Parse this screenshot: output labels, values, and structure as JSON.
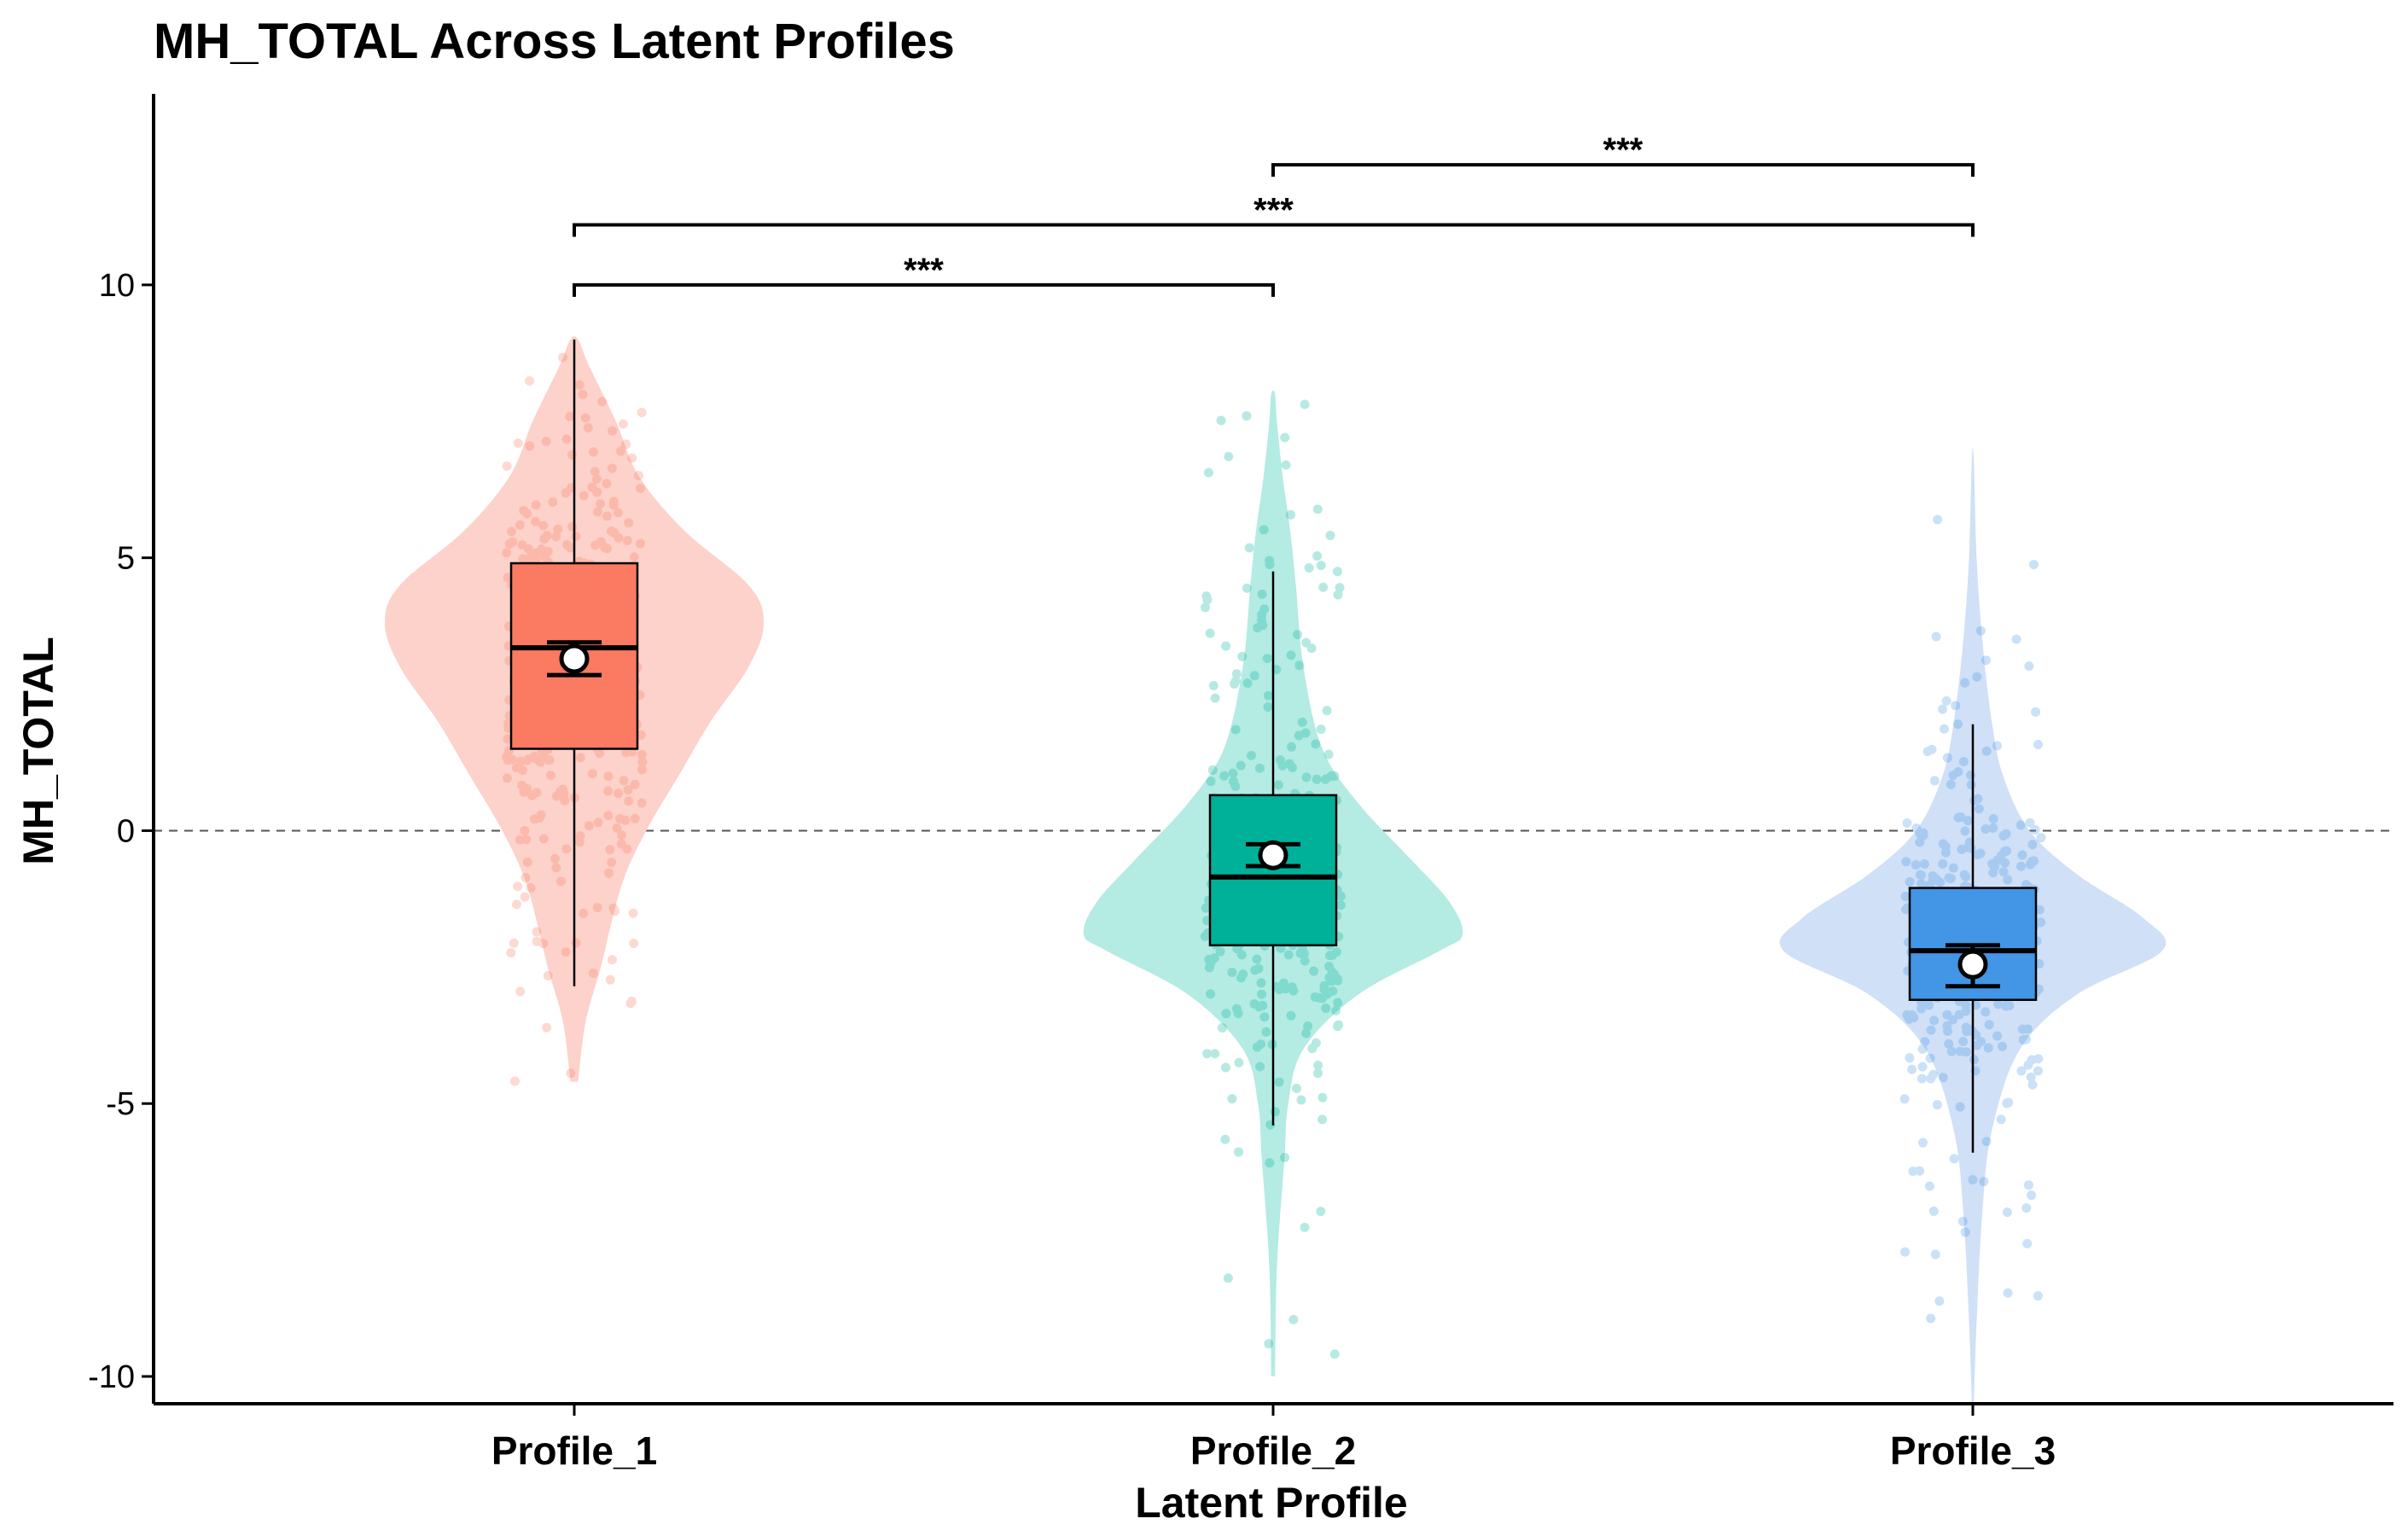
{
  "chart_data": {
    "type": "violin",
    "title": "MH_TOTAL Across Latent Profiles",
    "xlabel": "Latent Profile",
    "ylabel": "MH_TOTAL",
    "ylim": [
      -10.5,
      13.5
    ],
    "yticks": [
      -10,
      -5,
      0,
      5,
      10
    ],
    "reference_line": {
      "y": 0,
      "style": "dashed"
    },
    "grid": false,
    "legend": "none",
    "categories": [
      "Profile_1",
      "Profile_2",
      "Profile_3"
    ],
    "series": [
      {
        "category": "Profile_1",
        "fill": "#fa7a62",
        "violin_fill": "#fcd2ca",
        "box": {
          "q1": 1.5,
          "median": 3.35,
          "q3": 4.9,
          "whisker_low": -2.85,
          "whisker_high": 9.0
        },
        "mean": 3.15,
        "ci": [
          2.85,
          3.45
        ],
        "range": [
          -4.6,
          9.0
        ],
        "violin_density": [
          [
            -4.6,
            0.02
          ],
          [
            -3.5,
            0.06
          ],
          [
            -2.5,
            0.14
          ],
          [
            -1,
            0.25
          ],
          [
            0,
            0.38
          ],
          [
            1,
            0.55
          ],
          [
            2,
            0.72
          ],
          [
            3,
            0.92
          ],
          [
            3.8,
            1.0
          ],
          [
            4.5,
            0.92
          ],
          [
            5.5,
            0.58
          ],
          [
            6.5,
            0.34
          ],
          [
            7.5,
            0.22
          ],
          [
            8.5,
            0.08
          ],
          [
            9,
            0.02
          ]
        ]
      },
      {
        "category": "Profile_2",
        "fill": "#00b199",
        "violin_fill": "#b4ebe3",
        "box": {
          "q1": -2.1,
          "median": -0.85,
          "q3": 0.65,
          "whisker_low": -5.4,
          "whisker_high": 4.75
        },
        "mean": -0.45,
        "ci": [
          -0.65,
          -0.25
        ],
        "range": [
          -10,
          8
        ],
        "violin_density": [
          [
            -10,
            0.01
          ],
          [
            -8,
            0.02
          ],
          [
            -6,
            0.06
          ],
          [
            -5,
            0.08
          ],
          [
            -4,
            0.16
          ],
          [
            -3,
            0.45
          ],
          [
            -2.2,
            0.88
          ],
          [
            -1.9,
            1.0
          ],
          [
            -1.3,
            0.93
          ],
          [
            -0.5,
            0.72
          ],
          [
            0.5,
            0.45
          ],
          [
            1.5,
            0.26
          ],
          [
            3,
            0.16
          ],
          [
            4.5,
            0.12
          ],
          [
            5.5,
            0.09
          ],
          [
            6.5,
            0.05
          ],
          [
            7.5,
            0.02
          ],
          [
            8,
            0.01
          ]
        ]
      },
      {
        "category": "Profile_3",
        "fill": "#4395e5",
        "violin_fill": "#cfe0f7",
        "box": {
          "q1": -3.1,
          "median": -2.2,
          "q3": -1.05,
          "whisker_low": -5.9,
          "whisker_high": 1.95
        },
        "mean": -2.45,
        "ci": [
          -2.85,
          -2.1
        ],
        "range": [
          -10.5,
          6.8
        ],
        "violin_density": [
          [
            -10.5,
            0.005
          ],
          [
            -9,
            0.02
          ],
          [
            -7,
            0.05
          ],
          [
            -5.5,
            0.1
          ],
          [
            -4,
            0.25
          ],
          [
            -3,
            0.55
          ],
          [
            -2.2,
            1.0
          ],
          [
            -1.6,
            0.9
          ],
          [
            -0.8,
            0.55
          ],
          [
            0,
            0.3
          ],
          [
            1,
            0.16
          ],
          [
            2,
            0.1
          ],
          [
            3.5,
            0.05
          ],
          [
            5,
            0.02
          ],
          [
            6.8,
            0.005
          ]
        ]
      }
    ],
    "comparisons": [
      {
        "from": "Profile_1",
        "to": "Profile_2",
        "y": 10,
        "label": "***"
      },
      {
        "from": "Profile_1",
        "to": "Profile_3",
        "y": 11.1,
        "label": "***"
      },
      {
        "from": "Profile_2",
        "to": "Profile_3",
        "y": 12.2,
        "label": "***"
      }
    ]
  }
}
